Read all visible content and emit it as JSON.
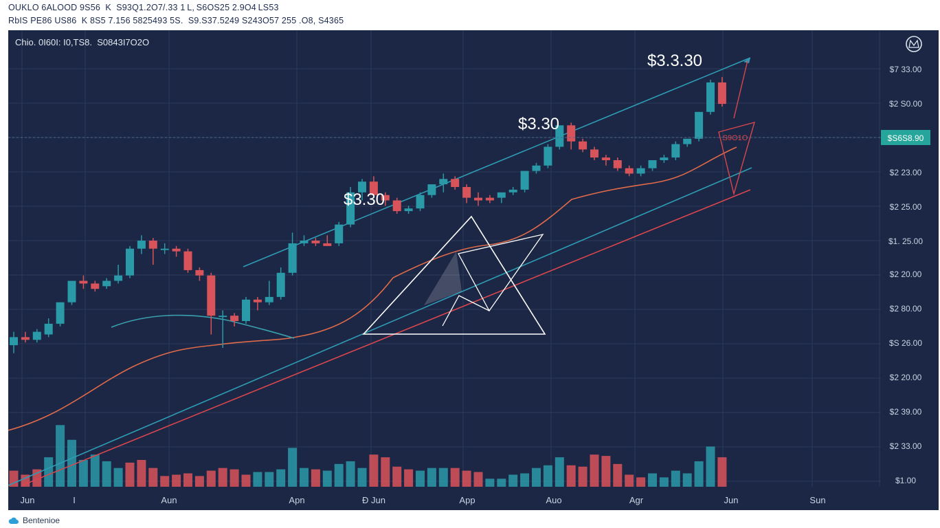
{
  "header": {
    "line1": "OUKLO 6ALOOD 9S56  K  S93Q1.2O7/.33 1 L, S6OS25 2.9O4 LS53",
    "line2": "RbIS PE86 US86  K 8S5 7.156 5825493 5S.  S9.S37.5249 S243O57 255 .O8, S4365"
  },
  "colors": {
    "background": "#1b2744",
    "grid": "#2b3a5c",
    "up": "#2a9aa8",
    "down": "#d9545a",
    "trend_teal": "#2f9cb5",
    "trend_red": "#d9464e",
    "ma_orange": "#e06a4a",
    "ma_teal": "#3aa0b0",
    "triangle": "#ffffff",
    "price_tag": "#26a69a"
  },
  "chart_data": {
    "type": "candlestick",
    "info_label": "Chio. 0I60I: I0,TS8.  S0843I7O2O",
    "x_tick_labels": [
      "Jun",
      "I",
      "Aun",
      "Apn",
      "Đ Jun",
      "App",
      "Auo",
      "Agr",
      "Jun",
      "Sun"
    ],
    "y_tick_labels": [
      "$7 33.00",
      "$2 S0.00",
      "$S6S8.90",
      "$2 23.00",
      "$2 25.00",
      "$1. 25.00",
      "$2 20.00",
      "$2 80.00",
      "$S 26.00",
      "$2 20.00",
      "$2 39.00",
      "$2 33.00",
      "$1.00"
    ],
    "current_price_tag": "$S6S8.90",
    "annotations": [
      "$3.30",
      "$3.30",
      "$3.3.30"
    ],
    "pattern_text": "S9O1O",
    "ohlc_price_scale": [
      0,
      100
    ],
    "volume_scale": [
      0,
      100
    ],
    "candles": [
      {
        "o": 21,
        "h": 26,
        "l": 18,
        "c": 24
      },
      {
        "o": 24,
        "h": 26,
        "l": 22,
        "c": 23
      },
      {
        "o": 23,
        "h": 27,
        "l": 22,
        "c": 26
      },
      {
        "o": 25,
        "h": 31,
        "l": 24,
        "c": 29
      },
      {
        "o": 29,
        "h": 37,
        "l": 28,
        "c": 37
      },
      {
        "o": 37,
        "h": 45,
        "l": 36,
        "c": 45
      },
      {
        "o": 45,
        "h": 47,
        "l": 42,
        "c": 44
      },
      {
        "o": 44,
        "h": 45,
        "l": 41,
        "c": 42
      },
      {
        "o": 43,
        "h": 46,
        "l": 42,
        "c": 45
      },
      {
        "o": 45,
        "h": 51,
        "l": 44,
        "c": 47
      },
      {
        "o": 47,
        "h": 58,
        "l": 46,
        "c": 57
      },
      {
        "o": 57,
        "h": 62,
        "l": 55,
        "c": 60
      },
      {
        "o": 60,
        "h": 61,
        "l": 51,
        "c": 57
      },
      {
        "o": 57,
        "h": 59,
        "l": 55,
        "c": 57
      },
      {
        "o": 57,
        "h": 58,
        "l": 54,
        "c": 56
      },
      {
        "o": 56,
        "h": 57,
        "l": 48,
        "c": 49
      },
      {
        "o": 49,
        "h": 50,
        "l": 45,
        "c": 47
      },
      {
        "o": 47,
        "h": 48,
        "l": 25,
        "c": 32
      },
      {
        "o": 32,
        "h": 34,
        "l": 20,
        "c": 32
      },
      {
        "o": 32,
        "h": 33,
        "l": 28,
        "c": 30
      },
      {
        "o": 30,
        "h": 39,
        "l": 29,
        "c": 38
      },
      {
        "o": 38,
        "h": 39,
        "l": 34,
        "c": 37
      },
      {
        "o": 37,
        "h": 45,
        "l": 36,
        "c": 39
      },
      {
        "o": 39,
        "h": 50,
        "l": 38,
        "c": 48
      },
      {
        "o": 48,
        "h": 63,
        "l": 47,
        "c": 59
      },
      {
        "o": 59,
        "h": 62,
        "l": 58,
        "c": 60
      },
      {
        "o": 60,
        "h": 61,
        "l": 58,
        "c": 59
      },
      {
        "o": 59,
        "h": 62,
        "l": 58,
        "c": 58
      },
      {
        "o": 59,
        "h": 67,
        "l": 58,
        "c": 66
      },
      {
        "o": 66,
        "h": 80,
        "l": 65,
        "c": 78
      },
      {
        "o": 78,
        "h": 83,
        "l": 75,
        "c": 82
      },
      {
        "o": 82,
        "h": 84,
        "l": 76,
        "c": 77
      },
      {
        "o": 77,
        "h": 78,
        "l": 73,
        "c": 75
      },
      {
        "o": 75,
        "h": 76,
        "l": 70,
        "c": 71
      },
      {
        "o": 71,
        "h": 73,
        "l": 70,
        "c": 72
      },
      {
        "o": 72,
        "h": 78,
        "l": 71,
        "c": 77
      },
      {
        "o": 77,
        "h": 81,
        "l": 76,
        "c": 81
      },
      {
        "o": 81,
        "h": 85,
        "l": 78,
        "c": 83
      },
      {
        "o": 83,
        "h": 84,
        "l": 79,
        "c": 80
      },
      {
        "o": 80,
        "h": 81,
        "l": 74,
        "c": 76
      },
      {
        "o": 76,
        "h": 78,
        "l": 73,
        "c": 75
      },
      {
        "o": 76,
        "h": 77,
        "l": 74,
        "c": 75
      },
      {
        "o": 76,
        "h": 77,
        "l": 74,
        "c": 78
      },
      {
        "o": 78,
        "h": 80,
        "l": 77,
        "c": 79
      },
      {
        "o": 79,
        "h": 86,
        "l": 78,
        "c": 86
      },
      {
        "o": 86,
        "h": 89,
        "l": 85,
        "c": 88
      },
      {
        "o": 88,
        "h": 96,
        "l": 87,
        "c": 95
      },
      {
        "o": 95,
        "h": 103,
        "l": 94,
        "c": 103
      },
      {
        "o": 103,
        "h": 104,
        "l": 94,
        "c": 97
      },
      {
        "o": 97,
        "h": 98,
        "l": 93,
        "c": 94
      },
      {
        "o": 94,
        "h": 95,
        "l": 90,
        "c": 91
      },
      {
        "o": 91,
        "h": 92,
        "l": 88,
        "c": 90
      },
      {
        "o": 90,
        "h": 91,
        "l": 86,
        "c": 87
      },
      {
        "o": 87,
        "h": 88,
        "l": 84,
        "c": 85
      },
      {
        "o": 85,
        "h": 88,
        "l": 84,
        "c": 87
      },
      {
        "o": 87,
        "h": 90,
        "l": 86,
        "c": 90
      },
      {
        "o": 90,
        "h": 92,
        "l": 89,
        "c": 91
      },
      {
        "o": 91,
        "h": 97,
        "l": 90,
        "c": 96
      },
      {
        "o": 96,
        "h": 98,
        "l": 95,
        "c": 98
      },
      {
        "o": 98,
        "h": 108,
        "l": 97,
        "c": 108
      },
      {
        "o": 108,
        "h": 120,
        "l": 107,
        "c": 119
      },
      {
        "o": 119,
        "h": 121,
        "l": 110,
        "c": 111
      }
    ],
    "volumes": [
      {
        "v": 12,
        "up": false
      },
      {
        "v": 9,
        "up": false
      },
      {
        "v": 13,
        "up": false
      },
      {
        "v": 22,
        "up": true
      },
      {
        "v": 46,
        "up": true
      },
      {
        "v": 35,
        "up": true
      },
      {
        "v": 20,
        "up": true
      },
      {
        "v": 24,
        "up": true
      },
      {
        "v": 19,
        "up": true
      },
      {
        "v": 14,
        "up": true
      },
      {
        "v": 18,
        "up": false
      },
      {
        "v": 20,
        "up": false
      },
      {
        "v": 14,
        "up": false
      },
      {
        "v": 8,
        "up": false
      },
      {
        "v": 9,
        "up": false
      },
      {
        "v": 10,
        "up": false
      },
      {
        "v": 8,
        "up": false
      },
      {
        "v": 12,
        "up": false
      },
      {
        "v": 14,
        "up": false
      },
      {
        "v": 13,
        "up": false
      },
      {
        "v": 9,
        "up": false
      },
      {
        "v": 11,
        "up": true
      },
      {
        "v": 11,
        "up": true
      },
      {
        "v": 13,
        "up": true
      },
      {
        "v": 29,
        "up": true
      },
      {
        "v": 14,
        "up": true
      },
      {
        "v": 13,
        "up": false
      },
      {
        "v": 12,
        "up": true
      },
      {
        "v": 17,
        "up": true
      },
      {
        "v": 19,
        "up": true
      },
      {
        "v": 14,
        "up": true
      },
      {
        "v": 24,
        "up": false
      },
      {
        "v": 22,
        "up": false
      },
      {
        "v": 15,
        "up": false
      },
      {
        "v": 13,
        "up": false
      },
      {
        "v": 12,
        "up": true
      },
      {
        "v": 14,
        "up": true
      },
      {
        "v": 14,
        "up": true
      },
      {
        "v": 14,
        "up": false
      },
      {
        "v": 12,
        "up": false
      },
      {
        "v": 11,
        "up": false
      },
      {
        "v": 6,
        "up": true
      },
      {
        "v": 6,
        "up": true
      },
      {
        "v": 9,
        "up": true
      },
      {
        "v": 10,
        "up": true
      },
      {
        "v": 14,
        "up": true
      },
      {
        "v": 16,
        "up": true
      },
      {
        "v": 22,
        "up": true
      },
      {
        "v": 16,
        "up": false
      },
      {
        "v": 15,
        "up": false
      },
      {
        "v": 24,
        "up": false
      },
      {
        "v": 23,
        "up": false
      },
      {
        "v": 17,
        "up": false
      },
      {
        "v": 9,
        "up": false
      },
      {
        "v": 7,
        "up": false
      },
      {
        "v": 10,
        "up": true
      },
      {
        "v": 7,
        "up": true
      },
      {
        "v": 12,
        "up": true
      },
      {
        "v": 10,
        "up": true
      },
      {
        "v": 19,
        "up": true
      },
      {
        "v": 30,
        "up": true
      },
      {
        "v": 22,
        "up": false
      }
    ]
  },
  "footer": {
    "brand": "Bentenioe"
  }
}
